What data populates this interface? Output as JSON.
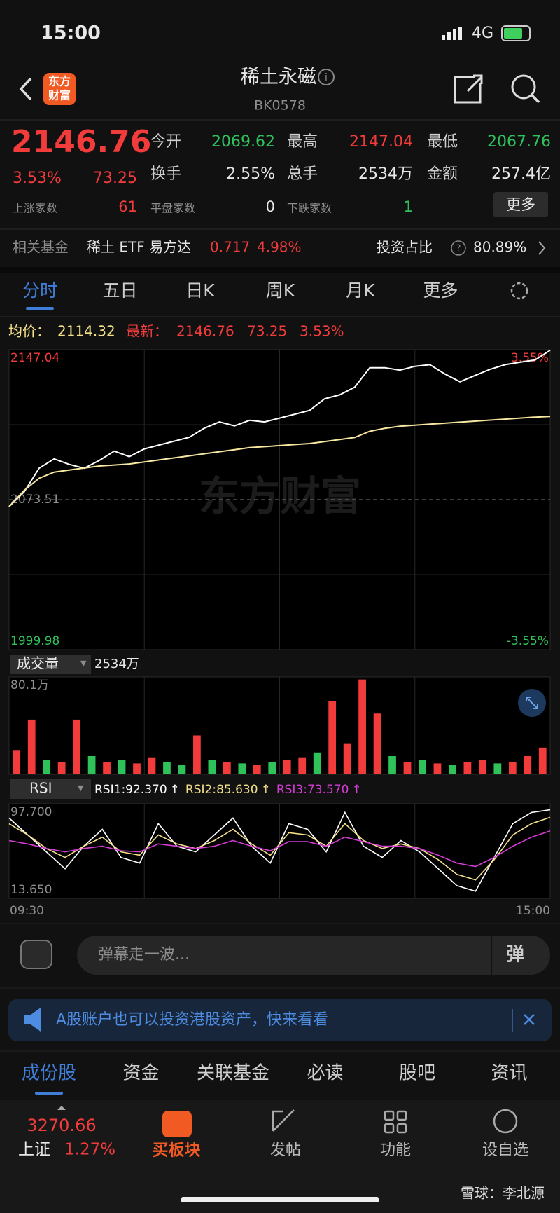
{
  "status": {
    "time": "15:00",
    "network": "4G"
  },
  "header": {
    "logo": [
      "东方",
      "财富"
    ],
    "title": "稀土永磁",
    "code": "BK0578"
  },
  "quote": {
    "price": "2146.76",
    "change_pct": "3.53%",
    "change": "73.25",
    "stats": [
      {
        "label": "今开",
        "value": "2069.62"
      },
      {
        "label": "最高",
        "value": "2147.04"
      },
      {
        "label": "最低",
        "value": "2067.76"
      },
      {
        "label": "换手",
        "value": "2.55%"
      },
      {
        "label": "总手",
        "value": "2534万"
      },
      {
        "label": "金额",
        "value": "257.4亿"
      }
    ],
    "breadth": [
      {
        "label": "上涨家数",
        "value": "61"
      },
      {
        "label": "平盘家数",
        "value": "0"
      },
      {
        "label": "下跌家数",
        "value": "1"
      }
    ],
    "more": "更多"
  },
  "fund": {
    "label": "相关基金",
    "name": "稀土 ETF 易方达",
    "price": "0.717",
    "change": "4.98%",
    "ratio_label": "投资占比",
    "ratio": "80.89%"
  },
  "tabs": [
    "分时",
    "五日",
    "日K",
    "周K",
    "月K",
    "更多"
  ],
  "legend": {
    "avg_label": "均价：",
    "avg": "2114.32",
    "latest_label": "最新：",
    "latest": "2146.76",
    "change": "73.25",
    "change_pct": "3.53%"
  },
  "chart_data": [
    {
      "type": "line",
      "watermark": "东方财富",
      "ylim": [
        1999.98,
        2147.04
      ],
      "yticks": [
        1999.98,
        2073.51,
        2147.04
      ],
      "y_right_labels": [
        "3.55%",
        "-3.55%"
      ],
      "x_labels": [
        "09:30",
        "15:00"
      ],
      "series": [
        {
          "name": "最新",
          "color": "#ffffff",
          "values": [
            2070.1,
            2077.3,
            2088.9,
            2093.5,
            2090.8,
            2088.9,
            2092.7,
            2097.3,
            2094.6,
            2098.4,
            2100.3,
            2102.2,
            2104.1,
            2108.6,
            2111.6,
            2109.7,
            2112.4,
            2111.6,
            2113.5,
            2115.4,
            2117.3,
            2123.0,
            2124.9,
            2128.7,
            2138.2,
            2138.2,
            2137.0,
            2138.9,
            2139.7,
            2135.1,
            2131.3,
            2134.4,
            2137.4,
            2139.7,
            2140.9,
            2142.0,
            2146.76
          ]
        },
        {
          "name": "均价",
          "color": "#f7e7a1",
          "values": [
            2070,
            2078,
            2084,
            2087,
            2088,
            2089,
            2090,
            2090.5,
            2091,
            2092,
            2093,
            2094,
            2095,
            2096,
            2097,
            2098,
            2099,
            2099.5,
            2100,
            2100.5,
            2101,
            2102,
            2103,
            2104,
            2107,
            2108.5,
            2109.5,
            2110,
            2110.5,
            2111,
            2111.5,
            2112,
            2112.5,
            2113,
            2113.5,
            2114,
            2114.32
          ]
        }
      ]
    },
    {
      "type": "bar",
      "label": "成交量",
      "total": "2534万",
      "ylim": [
        0,
        80.1
      ],
      "yticks": [
        {
          "value": 80.1,
          "label": "80.1万"
        }
      ],
      "values": [
        20,
        45,
        12,
        10,
        45,
        15,
        10,
        12,
        9,
        14,
        10,
        8,
        32,
        12,
        10,
        9,
        8,
        10,
        12,
        14,
        18,
        60,
        25,
        78,
        50,
        15,
        10,
        12,
        9,
        8,
        10,
        12,
        9,
        10,
        15,
        22
      ],
      "colors": [
        "#f23b3b",
        "#f23b3b",
        "#2fc25b",
        "#f23b3b",
        "#f23b3b",
        "#2fc25b",
        "#f23b3b",
        "#2fc25b",
        "#f23b3b",
        "#f23b3b",
        "#2fc25b",
        "#2fc25b",
        "#f23b3b",
        "#2fc25b",
        "#f23b3b",
        "#2fc25b",
        "#f23b3b",
        "#2fc25b",
        "#f23b3b",
        "#f23b3b",
        "#2fc25b",
        "#f23b3b",
        "#f23b3b",
        "#f23b3b",
        "#f23b3b",
        "#2fc25b",
        "#f23b3b",
        "#2fc25b",
        "#f23b3b",
        "#2fc25b",
        "#f23b3b",
        "#f23b3b",
        "#2fc25b",
        "#f23b3b",
        "#f23b3b",
        "#f23b3b"
      ]
    },
    {
      "type": "line",
      "label": "RSI",
      "ylim": [
        13.65,
        97.7
      ],
      "yticks": [
        {
          "value": 13.65,
          "label": "13.650"
        },
        {
          "value": 97.7,
          "label": "97.700"
        }
      ],
      "series": [
        {
          "name": "RSI1",
          "current": "92.370",
          "color": "#ffffff",
          "values": [
            85,
            70,
            55,
            40,
            60,
            75,
            50,
            45,
            80,
            60,
            55,
            70,
            85,
            60,
            45,
            80,
            75,
            55,
            90,
            60,
            50,
            65,
            55,
            40,
            25,
            20,
            50,
            80,
            90,
            92.37
          ]
        },
        {
          "name": "RSI2",
          "current": "85.630",
          "color": "#f5e08a",
          "values": [
            80,
            70,
            58,
            50,
            60,
            68,
            55,
            52,
            70,
            62,
            58,
            65,
            75,
            62,
            52,
            72,
            70,
            60,
            80,
            65,
            58,
            62,
            58,
            48,
            35,
            30,
            48,
            70,
            80,
            85.63
          ]
        },
        {
          "name": "RSI3",
          "current": "73.570",
          "color": "#d63cd6",
          "values": [
            65,
            62,
            58,
            55,
            58,
            60,
            56,
            55,
            62,
            60,
            58,
            60,
            65,
            60,
            56,
            64,
            64,
            60,
            68,
            64,
            60,
            60,
            58,
            52,
            45,
            42,
            50,
            60,
            68,
            73.57
          ]
        }
      ]
    }
  ],
  "comment": {
    "placeholder": "弹幕走一波...",
    "button": "弹"
  },
  "banner": {
    "text": "A股账户也可以投资港股资产，快来看看"
  },
  "section_tabs": [
    "成份股",
    "资金",
    "关联基金",
    "必读",
    "股吧",
    "资讯"
  ],
  "nav": {
    "index_value": "3270.66",
    "index_name": "上证",
    "index_change": "1.27%",
    "items": [
      "买板块",
      "发帖",
      "功能",
      "设自选"
    ]
  },
  "watermark": "雪球：李北源"
}
